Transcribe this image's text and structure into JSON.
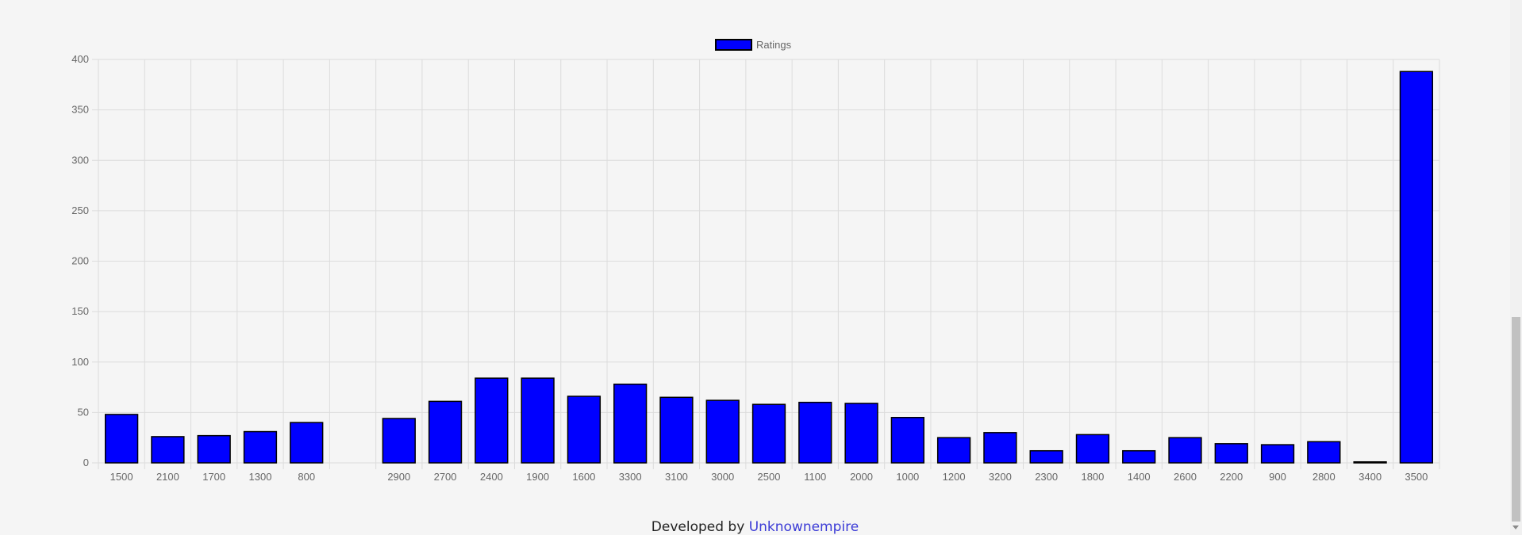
{
  "chart_data": {
    "type": "bar",
    "categories": [
      "1500",
      "2100",
      "1700",
      "1300",
      "800",
      "",
      "2900",
      "2700",
      "2400",
      "1900",
      "1600",
      "3300",
      "3100",
      "3000",
      "2500",
      "1100",
      "2000",
      "1000",
      "1200",
      "3200",
      "2300",
      "1800",
      "1400",
      "2600",
      "2200",
      "900",
      "2800",
      "3400",
      "3500"
    ],
    "series": [
      {
        "name": "Ratings",
        "values": [
          48,
          26,
          27,
          31,
          40,
          0,
          44,
          61,
          84,
          84,
          66,
          78,
          65,
          62,
          58,
          60,
          59,
          45,
          25,
          30,
          12,
          28,
          12,
          25,
          19,
          18,
          21,
          1,
          388
        ]
      }
    ],
    "yticks": [
      "0",
      "50",
      "100",
      "150",
      "200",
      "250",
      "300",
      "350",
      "400"
    ],
    "ylim": [
      0,
      400
    ],
    "grid": true,
    "legend_position": "top",
    "colors": {
      "bar_fill": "#0000ff",
      "bar_border": "#000000",
      "grid": "#dcdcdc",
      "tick_text": "#666666"
    }
  },
  "footer": {
    "text": "Developed by ",
    "link_label": "Unknownempire",
    "link_color": "#3b3bd6"
  }
}
